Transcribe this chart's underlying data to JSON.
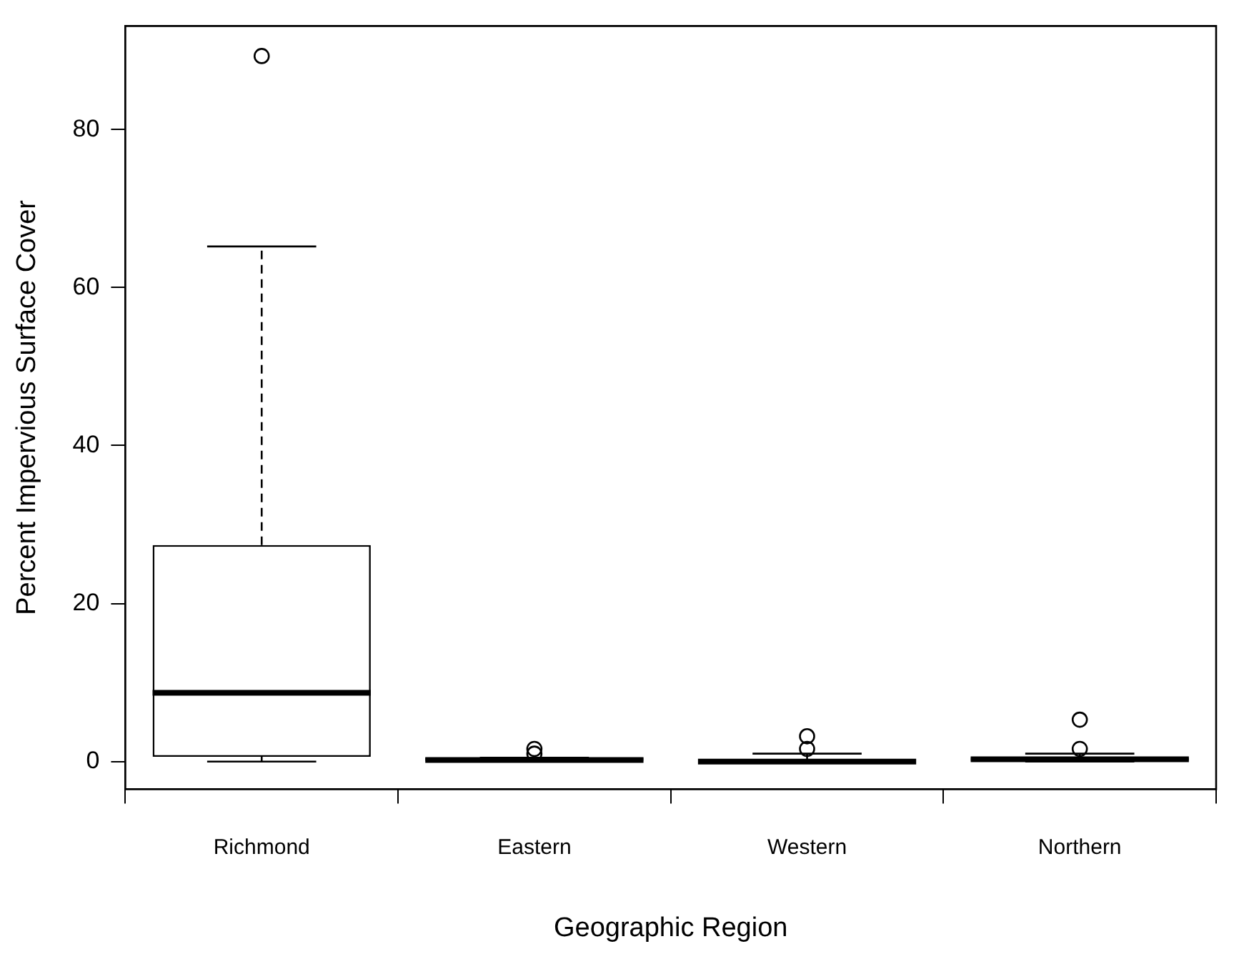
{
  "chart_data": {
    "type": "box",
    "xlabel": "Geographic Region",
    "ylabel": "Percent Impervious Surface Cover",
    "categories": [
      "Richmond",
      "Eastern",
      "Western",
      "Northern"
    ],
    "ylim": [
      -3.5,
      93.1
    ],
    "yticks": [
      0,
      20,
      40,
      60,
      80
    ],
    "grid": false,
    "line_style": "dashed",
    "color": "#000000",
    "boxes": [
      {
        "low": 0,
        "q1": 0.6,
        "median": 8.7,
        "q3": 27.4,
        "high": 65.2,
        "outliers": [
          89.3
        ]
      },
      {
        "low": 0,
        "q1": 0,
        "median": 0.2,
        "q3": 0.5,
        "high": 0.5,
        "outliers": [
          1.6,
          1.0
        ]
      },
      {
        "low": 0,
        "q1": 0,
        "median": 0,
        "q3": 0.2,
        "high": 1.0,
        "outliers": [
          3.2,
          1.6
        ]
      },
      {
        "low": 0,
        "q1": 0.1,
        "median": 0.3,
        "q3": 0.5,
        "high": 1.0,
        "outliers": [
          5.3,
          1.6
        ]
      }
    ]
  }
}
